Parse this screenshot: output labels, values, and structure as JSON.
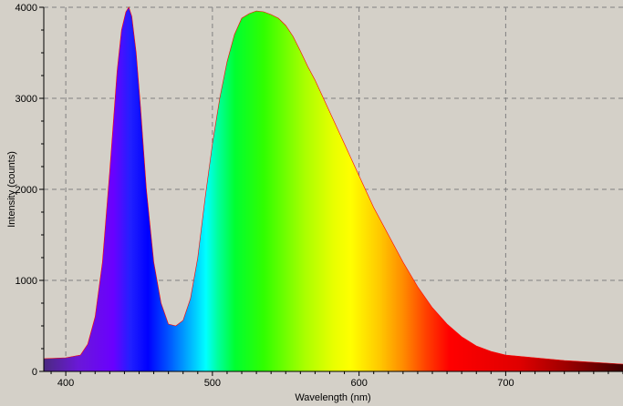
{
  "chart_data": {
    "type": "area",
    "xlabel": "Wavelength (nm)",
    "ylabel": "Intensity (counts)",
    "xlim": [
      385,
      780
    ],
    "ylim": [
      0,
      4000
    ],
    "x_ticks": [
      400,
      500,
      600,
      700
    ],
    "y_ticks": [
      0,
      1000,
      2000,
      3000,
      4000
    ],
    "grid": "dashed",
    "fill": "visible-spectrum gradient",
    "series": [
      {
        "x": [
          385,
          400,
          410,
          415,
          420,
          425,
          430,
          435,
          438,
          441,
          443,
          445,
          448,
          451,
          455,
          460,
          465,
          470,
          475,
          480,
          485,
          490,
          495,
          500,
          505,
          510,
          515,
          520,
          525,
          530,
          535,
          540,
          545,
          550,
          555,
          560,
          565,
          570,
          580,
          590,
          600,
          610,
          620,
          630,
          640,
          650,
          660,
          670,
          680,
          690,
          700,
          720,
          740,
          760,
          780
        ],
        "values": [
          140,
          150,
          180,
          300,
          600,
          1200,
          2200,
          3300,
          3750,
          3950,
          4000,
          3900,
          3500,
          2900,
          2000,
          1200,
          750,
          520,
          500,
          560,
          800,
          1250,
          1900,
          2500,
          3000,
          3400,
          3700,
          3880,
          3930,
          3960,
          3950,
          3920,
          3880,
          3800,
          3680,
          3520,
          3350,
          3200,
          2850,
          2500,
          2150,
          1800,
          1500,
          1200,
          930,
          700,
          520,
          380,
          280,
          220,
          180,
          150,
          120,
          100,
          80
        ]
      }
    ]
  }
}
